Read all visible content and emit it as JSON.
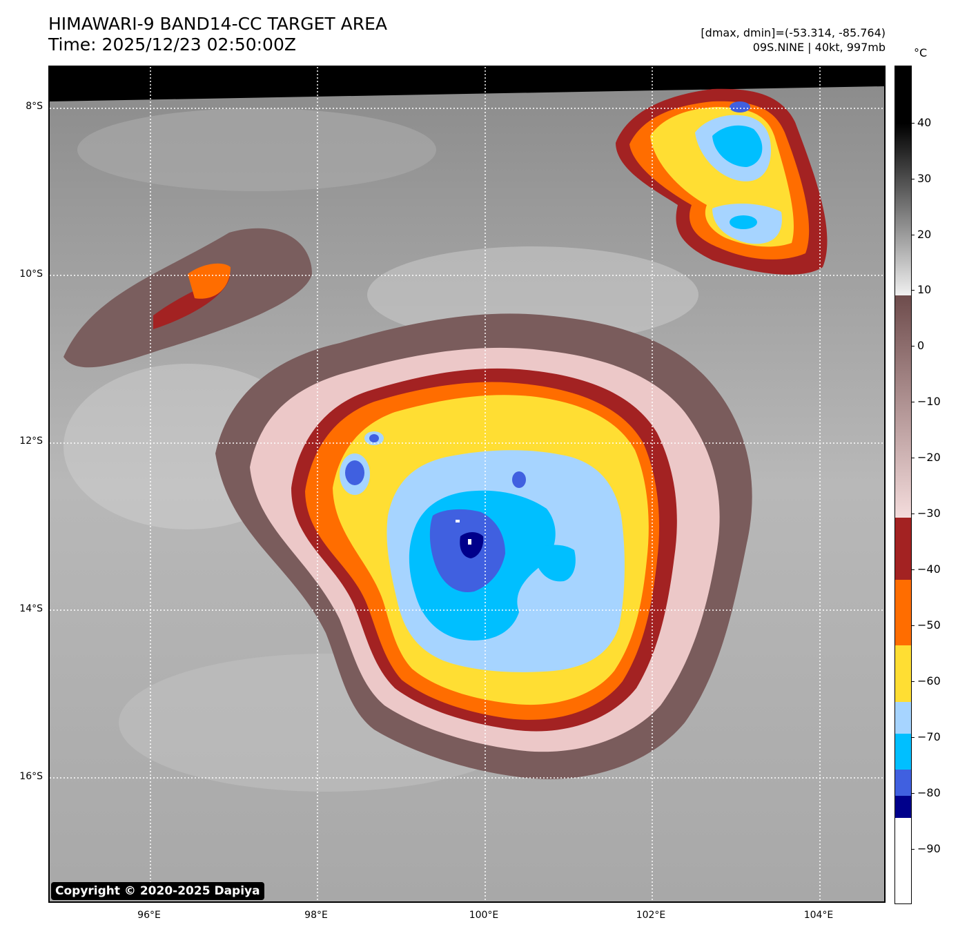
{
  "header": {
    "title_line1": "HIMAWARI-9 BAND14-CC TARGET AREA",
    "title_line2": "Time: 2025/12/23 02:50:00Z",
    "stats": "[dmax, dmin]=(-53.314, -85.764)",
    "storm": "09S.NINE | 40kt, 997mb"
  },
  "copyright": "Copyright © 2020-2025 Dapiya",
  "axes": {
    "lat_labels": [
      "8°S",
      "10°S",
      "12°S",
      "14°S",
      "16°S"
    ],
    "lon_labels": [
      "96°E",
      "98°E",
      "100°E",
      "102°E",
      "104°E"
    ]
  },
  "colorbar": {
    "unit": "°C",
    "tick_labels": [
      "40",
      "30",
      "20",
      "10",
      "0",
      "−10",
      "−20",
      "−30",
      "−40",
      "−50",
      "−60",
      "−70",
      "−80",
      "−90"
    ],
    "bands": [
      {
        "color": "#000000",
        "label": "above 30"
      },
      {
        "color": "#e8e8e8",
        "label": "10"
      },
      {
        "color": "#6e4c4c",
        "label": "0"
      },
      {
        "color": "#f4d8d8",
        "label": "-30"
      },
      {
        "color": "#a32222",
        "label": "-40"
      },
      {
        "color": "#ff6d00",
        "label": "-50"
      },
      {
        "color": "#ffde33",
        "label": "-60"
      },
      {
        "color": "#a6d4ff",
        "label": "-70"
      },
      {
        "color": "#00bfff",
        "label": "-75"
      },
      {
        "color": "#4060e0",
        "label": "-80"
      },
      {
        "color": "#00008b",
        "label": "-85"
      },
      {
        "color": "#ffffff",
        "label": "-90"
      }
    ]
  }
}
